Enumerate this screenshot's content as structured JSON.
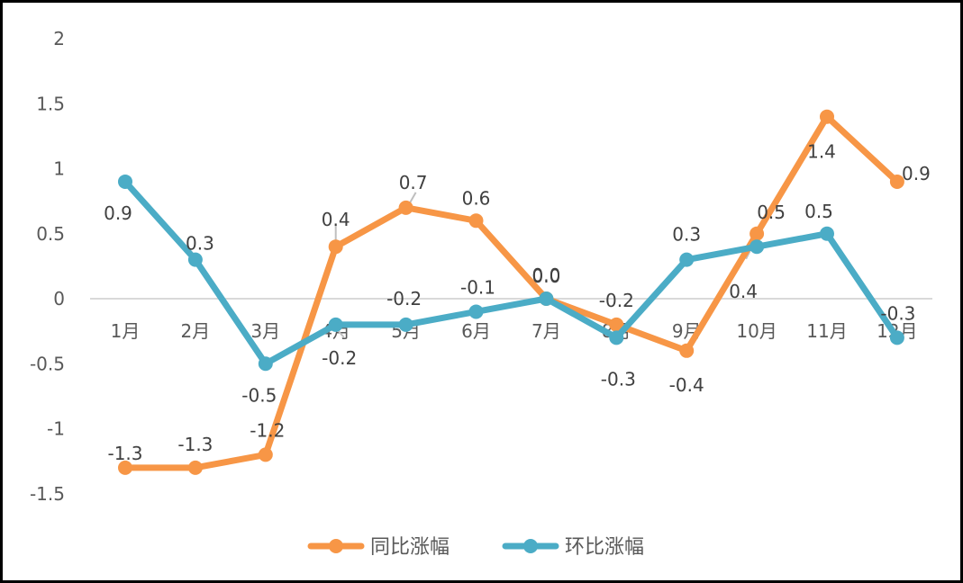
{
  "chart_data": {
    "type": "line",
    "title": "",
    "xlabel": "",
    "ylabel": "",
    "categories": [
      "1月",
      "2月",
      "3月",
      "4月",
      "5月",
      "6月",
      "7月",
      "8月",
      "9月",
      "10月",
      "11月",
      "12月"
    ],
    "ylim": [
      -1.5,
      2
    ],
    "yticks": [
      2,
      1.5,
      1,
      0.5,
      0,
      -0.5,
      -1,
      -1.5
    ],
    "grid": false,
    "legend_position": "bottom",
    "series": [
      {
        "name": "同比涨幅",
        "color": "#F79646",
        "values": [
          -1.3,
          -1.3,
          -1.2,
          0.4,
          0.7,
          0.6,
          0.0,
          -0.2,
          -0.4,
          0.5,
          1.4,
          0.9
        ],
        "labels": [
          "-1.3",
          "-1.3",
          "-1.2",
          "0.4",
          "0.7",
          "0.6",
          "0.0",
          "-0.2",
          "-0.4",
          "0.5",
          "1.4",
          "0.9"
        ]
      },
      {
        "name": "环比涨幅",
        "color": "#4BACC6",
        "values": [
          0.9,
          0.3,
          -0.5,
          -0.2,
          -0.2,
          -0.1,
          0.0,
          -0.3,
          0.3,
          0.4,
          0.5,
          -0.3
        ],
        "labels": [
          "0.9",
          "0.3",
          "-0.5",
          "-0.2",
          "-0.2",
          "-0.1",
          "0.0",
          "-0.3",
          "0.3",
          "0.4",
          "0.5",
          "-0.3"
        ]
      }
    ]
  }
}
